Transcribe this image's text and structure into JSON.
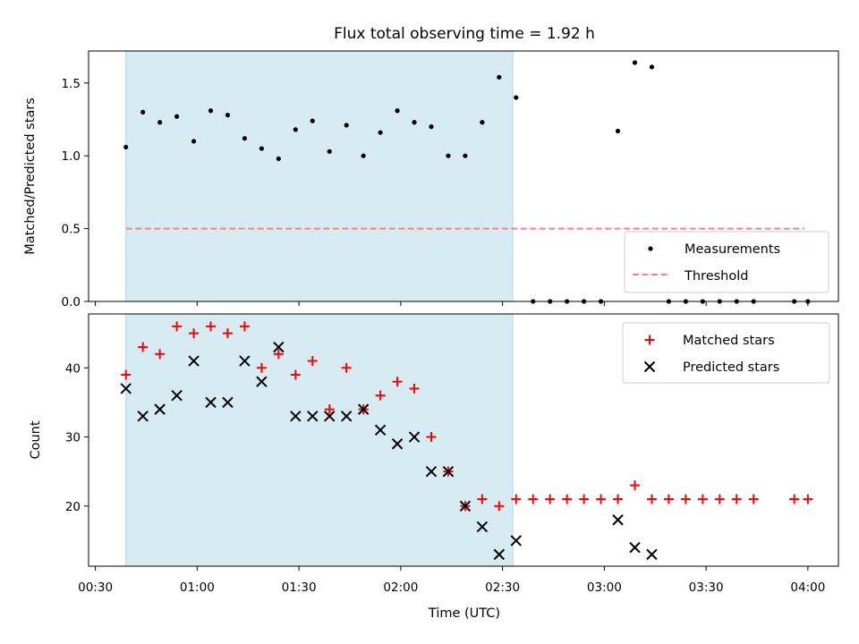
{
  "title": "Flux total observing time = 1.92 h",
  "colors": {
    "shade": "#add8e6",
    "matched": "#ff0000",
    "predicted": "#000000",
    "measurement": "#000000",
    "threshold": "#ff7f7f"
  },
  "chart_data": [
    {
      "type": "scatter",
      "ylabel": "Matched/Predicted stars",
      "xlim": [
        "00:28",
        "04:09"
      ],
      "ylim": [
        0,
        1.72
      ],
      "yticks": [
        0.0,
        0.5,
        1.0,
        1.5
      ],
      "ytick_labels": [
        "0.0",
        "0.5",
        "1.0",
        "1.5"
      ],
      "shaded_span": [
        "00:39",
        "02:33"
      ],
      "legend_position": "lower-right",
      "threshold": {
        "name": "Threshold",
        "value": 0.5,
        "x_range": [
          "00:39",
          "03:59"
        ],
        "style": "dashed"
      },
      "series": [
        {
          "name": "Measurements",
          "marker": "dot",
          "points": [
            [
              "00:39",
              1.06
            ],
            [
              "00:44",
              1.3
            ],
            [
              "00:49",
              1.23
            ],
            [
              "00:54",
              1.27
            ],
            [
              "00:59",
              1.1
            ],
            [
              "01:04",
              1.31
            ],
            [
              "01:09",
              1.28
            ],
            [
              "01:14",
              1.12
            ],
            [
              "01:19",
              1.05
            ],
            [
              "01:24",
              0.98
            ],
            [
              "01:29",
              1.18
            ],
            [
              "01:34",
              1.24
            ],
            [
              "01:39",
              1.03
            ],
            [
              "01:44",
              1.21
            ],
            [
              "01:49",
              1.0
            ],
            [
              "01:54",
              1.16
            ],
            [
              "01:59",
              1.31
            ],
            [
              "02:04",
              1.23
            ],
            [
              "02:09",
              1.2
            ],
            [
              "02:14",
              1.0
            ],
            [
              "02:19",
              1.0
            ],
            [
              "02:24",
              1.23
            ],
            [
              "02:29",
              1.54
            ],
            [
              "02:34",
              1.4
            ],
            [
              "02:39",
              0.0
            ],
            [
              "02:44",
              0.0
            ],
            [
              "02:49",
              0.0
            ],
            [
              "02:54",
              0.0
            ],
            [
              "02:59",
              0.0
            ],
            [
              "03:04",
              1.17
            ],
            [
              "03:09",
              1.64
            ],
            [
              "03:14",
              1.61
            ],
            [
              "03:19",
              0.0
            ],
            [
              "03:24",
              0.0
            ],
            [
              "03:29",
              0.0
            ],
            [
              "03:34",
              0.0
            ],
            [
              "03:39",
              0.0
            ],
            [
              "03:44",
              0.0
            ],
            [
              "03:56",
              0.0
            ],
            [
              "04:00",
              0.0
            ]
          ]
        }
      ]
    },
    {
      "type": "scatter",
      "xlabel": "Time (UTC)",
      "ylabel": "Count",
      "xlim": [
        "00:28",
        "04:09"
      ],
      "ylim": [
        11.3,
        47.8
      ],
      "yticks": [
        20,
        30,
        40
      ],
      "ytick_labels": [
        "20",
        "30",
        "40"
      ],
      "xticks": [
        "00:30",
        "01:00",
        "01:30",
        "02:00",
        "02:30",
        "03:00",
        "03:30",
        "04:00"
      ],
      "shaded_span": [
        "00:39",
        "02:33"
      ],
      "legend_position": "upper-right",
      "series": [
        {
          "name": "Matched stars",
          "marker": "plus",
          "points": [
            [
              "00:39",
              39
            ],
            [
              "00:44",
              43
            ],
            [
              "00:49",
              42
            ],
            [
              "00:54",
              46
            ],
            [
              "00:59",
              45
            ],
            [
              "01:04",
              46
            ],
            [
              "01:09",
              45
            ],
            [
              "01:14",
              46
            ],
            [
              "01:19",
              40
            ],
            [
              "01:24",
              42
            ],
            [
              "01:29",
              39
            ],
            [
              "01:34",
              41
            ],
            [
              "01:39",
              34
            ],
            [
              "01:44",
              40
            ],
            [
              "01:49",
              34
            ],
            [
              "01:54",
              36
            ],
            [
              "01:59",
              38
            ],
            [
              "02:04",
              37
            ],
            [
              "02:09",
              30
            ],
            [
              "02:14",
              25
            ],
            [
              "02:19",
              20
            ],
            [
              "02:24",
              21
            ],
            [
              "02:29",
              20
            ],
            [
              "02:34",
              21
            ],
            [
              "02:39",
              21
            ],
            [
              "02:44",
              21
            ],
            [
              "02:49",
              21
            ],
            [
              "02:54",
              21
            ],
            [
              "02:59",
              21
            ],
            [
              "03:04",
              21
            ],
            [
              "03:09",
              23
            ],
            [
              "03:14",
              21
            ],
            [
              "03:19",
              21
            ],
            [
              "03:24",
              21
            ],
            [
              "03:29",
              21
            ],
            [
              "03:34",
              21
            ],
            [
              "03:39",
              21
            ],
            [
              "03:44",
              21
            ],
            [
              "03:56",
              21
            ],
            [
              "04:00",
              21
            ]
          ]
        },
        {
          "name": "Predicted stars",
          "marker": "x",
          "points": [
            [
              "00:39",
              37
            ],
            [
              "00:44",
              33
            ],
            [
              "00:49",
              34
            ],
            [
              "00:54",
              36
            ],
            [
              "00:59",
              41
            ],
            [
              "01:04",
              35
            ],
            [
              "01:09",
              35
            ],
            [
              "01:14",
              41
            ],
            [
              "01:19",
              38
            ],
            [
              "01:24",
              43
            ],
            [
              "01:29",
              33
            ],
            [
              "01:34",
              33
            ],
            [
              "01:39",
              33
            ],
            [
              "01:44",
              33
            ],
            [
              "01:49",
              34
            ],
            [
              "01:54",
              31
            ],
            [
              "01:59",
              29
            ],
            [
              "02:04",
              30
            ],
            [
              "02:09",
              25
            ],
            [
              "02:14",
              25
            ],
            [
              "02:19",
              20
            ],
            [
              "02:24",
              17
            ],
            [
              "02:29",
              13
            ],
            [
              "02:34",
              15
            ],
            [
              "03:04",
              18
            ],
            [
              "03:09",
              14
            ],
            [
              "03:14",
              13
            ]
          ]
        }
      ]
    }
  ]
}
